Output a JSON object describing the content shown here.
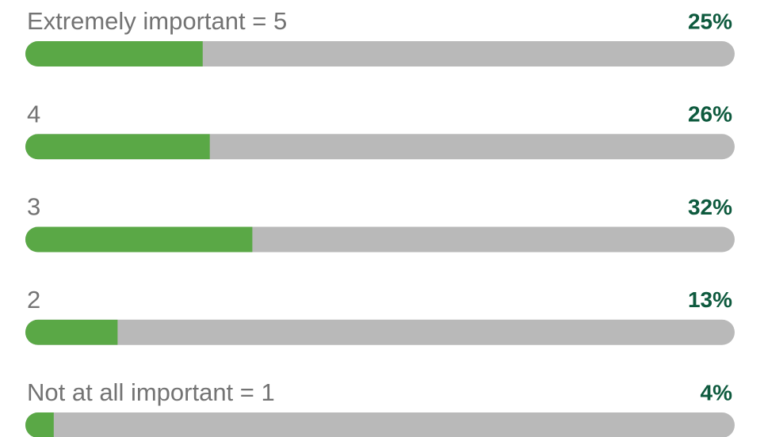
{
  "chart_data": {
    "type": "progress",
    "categories": [
      "Extremely important = 5",
      "4",
      "3",
      "2",
      "Not at all important = 1"
    ],
    "values": [
      25,
      26,
      32,
      13,
      4
    ],
    "value_labels": [
      "25%",
      "26%",
      "32%",
      "13%",
      "4%"
    ],
    "xlim": [
      0,
      100
    ],
    "color": "#5aa846",
    "track_color": "#b9b9b9"
  }
}
